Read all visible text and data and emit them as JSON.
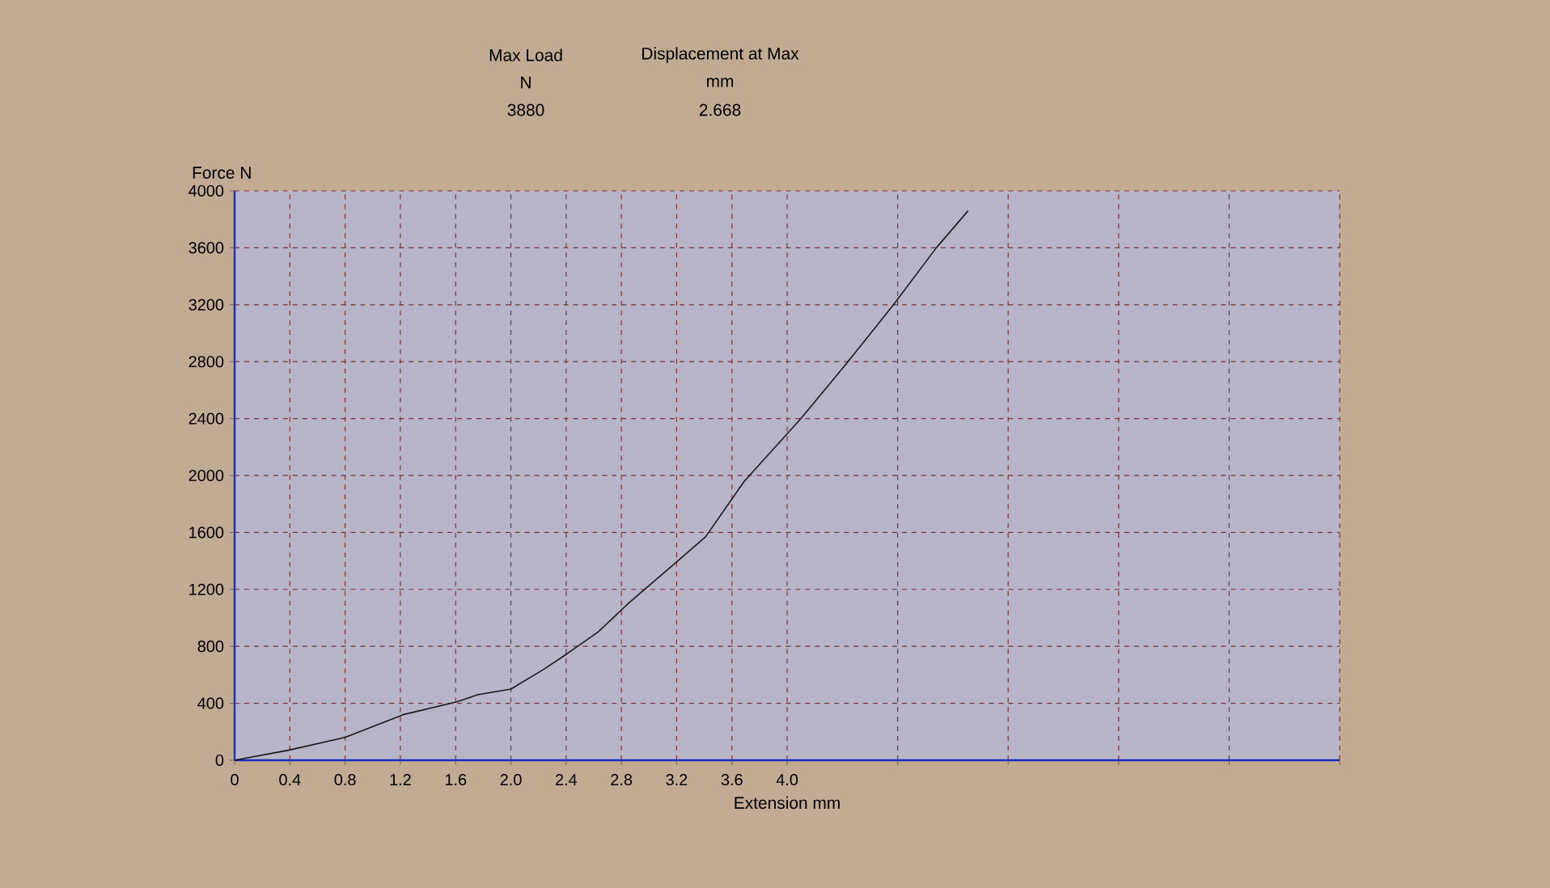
{
  "chart_data": {
    "type": "line",
    "xlabel": "Extension mm",
    "ylabel": "Force N",
    "annotations": [
      "Max Load",
      "N",
      "3880",
      "Displacement at Max",
      "mm",
      "2.668"
    ],
    "x": [
      0,
      0.39,
      0.8,
      1.22,
      1.61,
      1.76,
      2.0,
      2.24,
      2.41,
      2.63,
      2.86,
      3.22,
      3.41,
      3.69,
      4.1,
      4.44,
      4.77,
      5.08,
      5.31
    ],
    "values": [
      0,
      70,
      160,
      320,
      410,
      460,
      500,
      640,
      750,
      900,
      1110,
      1410,
      1570,
      1960,
      2400,
      2800,
      3200,
      3600,
      3860
    ],
    "color": "#1a1a1a",
    "xlim": [
      0,
      8.0
    ],
    "xticks": [
      0,
      0.4,
      0.8,
      1.2,
      1.6,
      {
        "value": 2,
        "label": "2.0"
      },
      2.4,
      2.8,
      3.2,
      3.6,
      {
        "value": 4,
        "label": "4.0"
      },
      {
        "value": 4.8,
        "label": null
      },
      {
        "value": 5.6,
        "label": null
      },
      {
        "value": 6.4,
        "label": null
      },
      {
        "value": 7.2,
        "label": null
      },
      {
        "value": 8.0,
        "label": null
      }
    ],
    "ylim": [
      0,
      4000
    ],
    "yticks": [
      0,
      400,
      800,
      1200,
      1600,
      2000,
      2400,
      2800,
      3200,
      3600,
      4000
    ],
    "grid": true,
    "marker": "none",
    "line_style": "solid"
  }
}
